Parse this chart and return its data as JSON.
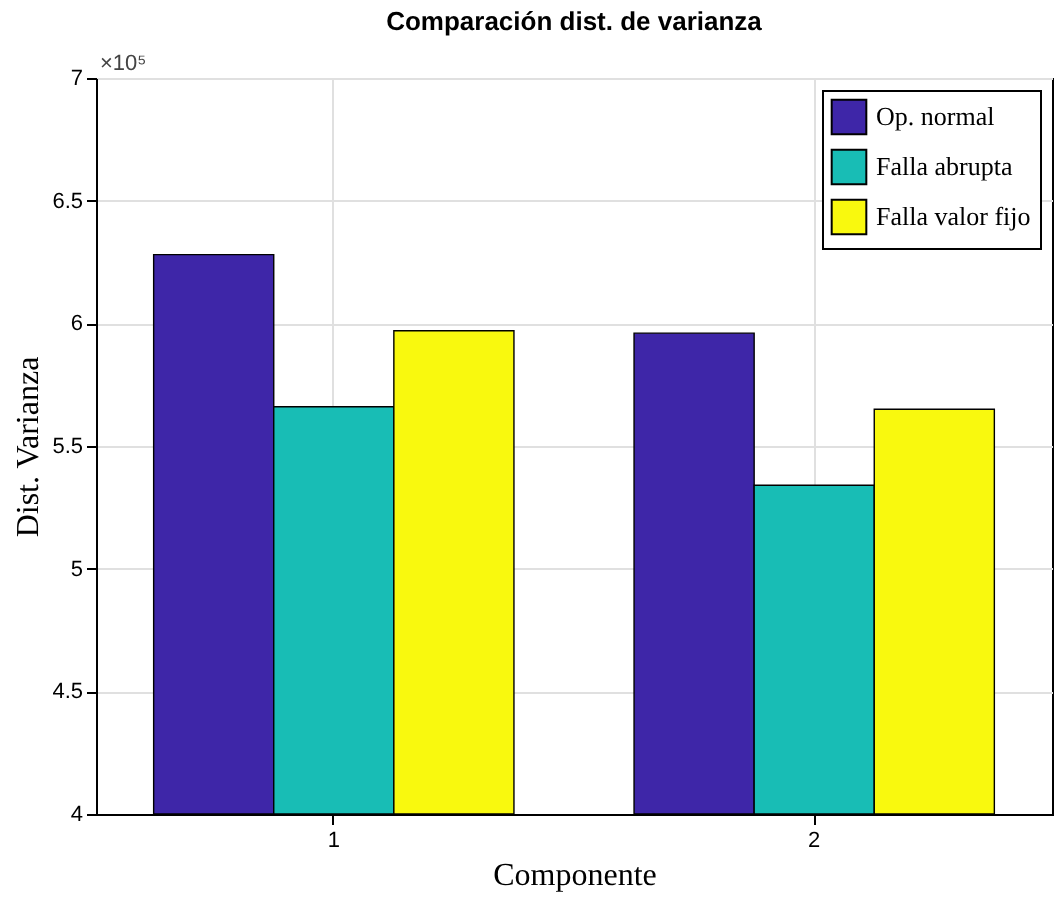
{
  "chart_data": {
    "type": "bar",
    "title": "Comparación dist. de varianza",
    "xlabel": "Componente",
    "ylabel": "Dist. Varianza",
    "categories": [
      "1",
      "2"
    ],
    "series": [
      {
        "name": "Op. normal",
        "color": "#3e26a8",
        "values": [
          6.28,
          5.96
        ]
      },
      {
        "name": "Falla abrupta",
        "color": "#18bdb5",
        "values": [
          5.66,
          5.34
        ]
      },
      {
        "name": "Falla valor fijo",
        "color": "#f9f90e",
        "values": [
          5.97,
          5.65
        ]
      }
    ],
    "ylim": [
      4,
      7
    ],
    "yticks": [
      4,
      4.5,
      5,
      5.5,
      6,
      6.5,
      7
    ],
    "grid": true,
    "legend": "top right",
    "annotations": [
      "×10⁵"
    ]
  }
}
